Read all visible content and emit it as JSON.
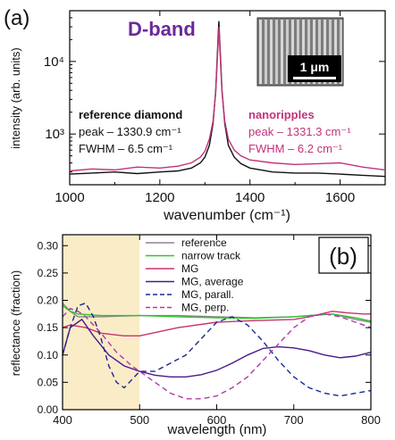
{
  "chart_data": [
    {
      "panel_label": "(a)",
      "type": "line",
      "title": "D-band",
      "xlabel": "wavenumber (cm⁻¹)",
      "ylabel": "intensity (arb. units)",
      "xlim": [
        1000,
        1700
      ],
      "ylim": [
        200,
        50000
      ],
      "yscale": "log",
      "grid": false,
      "x_ticks": [
        1000,
        1200,
        1400,
        1600
      ],
      "y_ticks": [
        1000,
        10000
      ],
      "y_tick_labels": [
        "10³",
        "10⁴"
      ],
      "series": [
        {
          "name": "reference diamond",
          "color": "#111111",
          "x": [
            1000,
            1050,
            1100,
            1150,
            1200,
            1240,
            1270,
            1290,
            1300,
            1310,
            1318,
            1324,
            1328,
            1330.9,
            1334,
            1338,
            1344,
            1352,
            1365,
            1380,
            1400,
            1450,
            1500,
            1550,
            1600,
            1650,
            1700
          ],
          "y": [
            280,
            290,
            300,
            285,
            300,
            310,
            340,
            400,
            480,
            700,
            1400,
            4000,
            14000,
            36000,
            14000,
            4000,
            1400,
            700,
            480,
            390,
            340,
            300,
            290,
            290,
            280,
            270,
            260
          ]
        },
        {
          "name": "nanoripples",
          "color": "#c2337a",
          "x": [
            1000,
            1050,
            1100,
            1150,
            1200,
            1240,
            1270,
            1290,
            1300,
            1310,
            1318,
            1324,
            1328,
            1331.3,
            1334,
            1338,
            1344,
            1352,
            1365,
            1380,
            1400,
            1450,
            1500,
            1550,
            1600,
            1650,
            1700
          ],
          "y": [
            310,
            330,
            320,
            350,
            340,
            360,
            400,
            480,
            580,
            850,
            1500,
            3800,
            12000,
            30000,
            12000,
            3800,
            1500,
            850,
            600,
            500,
            440,
            400,
            380,
            390,
            400,
            350,
            320
          ]
        }
      ],
      "annotations": [
        {
          "lines": [
            "reference diamond",
            "peak – 1330.9 cm⁻¹",
            "FWHM – 6.5 cm⁻¹"
          ]
        },
        {
          "lines": [
            "nanoripples",
            "peak – 1331.3 cm⁻¹",
            "FWHM – 6.2 cm⁻¹"
          ]
        }
      ],
      "inset": {
        "scale_bar_label": "1 μm"
      }
    },
    {
      "panel_label": "(b)",
      "type": "line",
      "xlabel": "wavelength (nm)",
      "ylabel": "reflectance (fraction)",
      "xlim": [
        400,
        800
      ],
      "ylim": [
        0.0,
        0.32
      ],
      "grid": false,
      "legend_position": "top-left",
      "shaded_region": [
        400,
        500
      ],
      "shaded_color": "#fbecc8",
      "x_ticks": [
        400,
        500,
        600,
        700,
        800
      ],
      "y_ticks": [
        0.0,
        0.05,
        0.1,
        0.15,
        0.2,
        0.25,
        0.3
      ],
      "y_tick_labels": [
        "0.00",
        "0.05",
        "0.10",
        "0.15",
        "0.20",
        "0.25",
        "0.30"
      ],
      "series": [
        {
          "name": "reference",
          "color": "#888888",
          "dash": "solid",
          "x": [
            400,
            410,
            420,
            450,
            500,
            550,
            600,
            650,
            700,
            720,
            750,
            780,
            800
          ],
          "y": [
            0.195,
            0.18,
            0.17,
            0.17,
            0.172,
            0.172,
            0.17,
            0.168,
            0.17,
            0.172,
            0.175,
            0.165,
            0.16
          ]
        },
        {
          "name": "narrow track",
          "color": "#2ec42e",
          "dash": "solid",
          "x": [
            400,
            410,
            420,
            450,
            500,
            550,
            600,
            650,
            700,
            720,
            750,
            780,
            800
          ],
          "y": [
            0.19,
            0.18,
            0.175,
            0.172,
            0.172,
            0.17,
            0.168,
            0.167,
            0.17,
            0.172,
            0.175,
            0.168,
            0.162
          ]
        },
        {
          "name": "MG",
          "color": "#c8336f",
          "dash": "solid",
          "x": [
            400,
            410,
            430,
            450,
            480,
            500,
            550,
            600,
            650,
            700,
            720,
            750,
            770,
            790,
            800
          ],
          "y": [
            0.15,
            0.155,
            0.15,
            0.14,
            0.135,
            0.135,
            0.15,
            0.16,
            0.163,
            0.165,
            0.17,
            0.18,
            0.177,
            0.175,
            0.175
          ]
        },
        {
          "name": "MG, average",
          "color": "#4a1a8a",
          "dash": "solid",
          "x": [
            400,
            410,
            425,
            440,
            460,
            480,
            500,
            520,
            540,
            560,
            580,
            600,
            620,
            640,
            660,
            680,
            700,
            720,
            740,
            760,
            780,
            800
          ],
          "y": [
            0.1,
            0.15,
            0.165,
            0.135,
            0.1,
            0.08,
            0.07,
            0.063,
            0.06,
            0.06,
            0.064,
            0.072,
            0.085,
            0.1,
            0.112,
            0.115,
            0.113,
            0.108,
            0.1,
            0.095,
            0.098,
            0.105
          ]
        },
        {
          "name": "MG, parall.",
          "color": "#1a2a8a",
          "dash": "dashed",
          "x": [
            400,
            410,
            420,
            430,
            440,
            450,
            460,
            470,
            480,
            490,
            500,
            520,
            540,
            560,
            580,
            600,
            620,
            640,
            660,
            680,
            700,
            720,
            740,
            760,
            780,
            800
          ],
          "y": [
            0.1,
            0.15,
            0.19,
            0.195,
            0.17,
            0.13,
            0.08,
            0.05,
            0.04,
            0.055,
            0.07,
            0.07,
            0.085,
            0.1,
            0.13,
            0.16,
            0.17,
            0.155,
            0.125,
            0.09,
            0.06,
            0.04,
            0.03,
            0.025,
            0.03,
            0.035
          ]
        },
        {
          "name": "MG, perp.",
          "color": "#b03aa8",
          "dash": "dashed",
          "x": [
            400,
            410,
            420,
            430,
            450,
            470,
            490,
            500,
            520,
            540,
            560,
            580,
            600,
            620,
            640,
            660,
            680,
            700,
            720,
            740,
            760,
            780,
            800
          ],
          "y": [
            0.17,
            0.185,
            0.18,
            0.17,
            0.14,
            0.105,
            0.08,
            0.07,
            0.05,
            0.03,
            0.02,
            0.02,
            0.025,
            0.04,
            0.06,
            0.09,
            0.12,
            0.15,
            0.17,
            0.175,
            0.17,
            0.16,
            0.15
          ]
        }
      ]
    }
  ]
}
